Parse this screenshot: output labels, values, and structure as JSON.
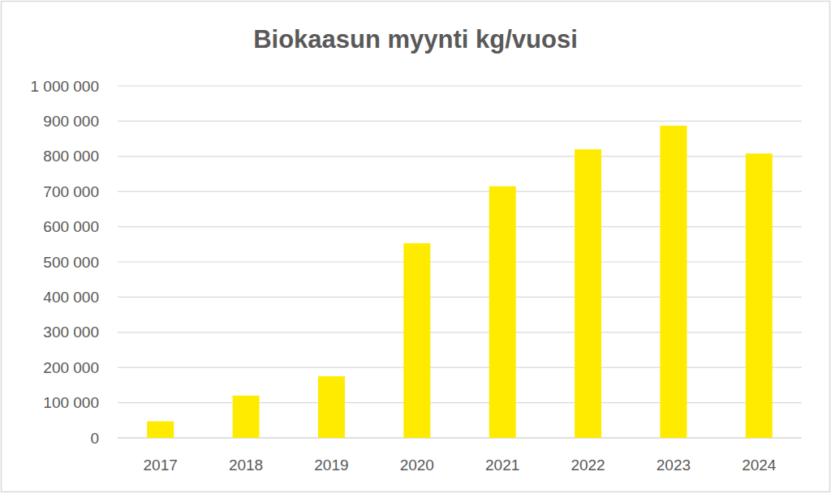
{
  "chart_data": {
    "type": "bar",
    "title": "Biokaasun myynti kg/vuosi",
    "categories": [
      "2017",
      "2018",
      "2019",
      "2020",
      "2021",
      "2022",
      "2023",
      "2024"
    ],
    "values": [
      47000,
      120000,
      175000,
      553000,
      715000,
      820000,
      887000,
      808000
    ],
    "color": "#ffeb00",
    "ylim": [
      0,
      1000000
    ],
    "yticks": [
      0,
      {
        "value": 100000,
        "label": "100 000"
      },
      {
        "value": 200000,
        "label": "200 000"
      },
      {
        "value": 300000,
        "label": "300 000"
      },
      {
        "value": 400000,
        "label": "400 000"
      },
      {
        "value": 500000,
        "label": "500 000"
      },
      {
        "value": 600000,
        "label": "600 000"
      },
      {
        "value": 700000,
        "label": "700 000"
      },
      {
        "value": 800000,
        "label": "800 000"
      },
      {
        "value": 900000,
        "label": "900 000"
      },
      {
        "value": 1000000,
        "label": "1 000 000"
      }
    ],
    "grid": true
  }
}
